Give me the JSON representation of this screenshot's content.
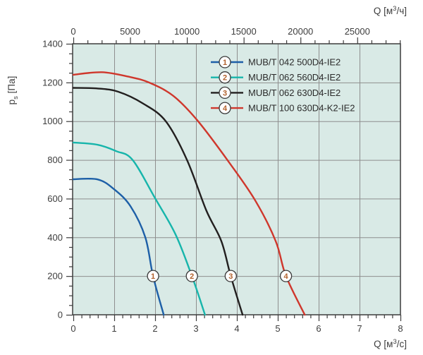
{
  "chart_data": {
    "type": "line",
    "title": "",
    "plot_bg_color": "#d9eae6",
    "grid_color": "#8e8e8e",
    "axis_color": "#3d3d3d",
    "text_color": "#3d3d3d",
    "marker_number_color": "#b2622d",
    "grid": true,
    "legend_position": "top-right-inside",
    "x_axis_bottom": {
      "label": {
        "pre": "Q [м",
        "sup": "3",
        "post": "/с]"
      },
      "min": 0,
      "max": 8,
      "major_tick_step": 1,
      "minor_tick_step": 0.2,
      "tick_labels": [
        "0",
        "1",
        "2",
        "3",
        "4",
        "5",
        "6",
        "7",
        "8"
      ]
    },
    "x_axis_top": {
      "label": {
        "pre": "Q [м",
        "sup": "3",
        "post": "/ч]"
      },
      "unit_per_bottom_unit": 3600,
      "min": 0,
      "max": 28800,
      "major_tick_step": 5000,
      "minor_tick_step": 1250,
      "tick_labels": [
        "0",
        "5000",
        "10000",
        "15000",
        "20000",
        "25000"
      ]
    },
    "y_axis": {
      "label": {
        "pre": "p",
        "sub": "s",
        "post": " [Па]"
      },
      "min": 0,
      "max": 1400,
      "major_tick_step": 200,
      "minor_tick_step": 50,
      "tick_labels": [
        "0",
        "200",
        "400",
        "600",
        "800",
        "1000",
        "1200",
        "1400"
      ]
    },
    "marker_pressure": 200,
    "series": [
      {
        "id": "1",
        "name": "MUB/T 042 500D4-IE2",
        "color": "#1d5fa7",
        "marker_q": 1.95,
        "points": [
          [
            0,
            700
          ],
          [
            0.6,
            699
          ],
          [
            1.0,
            648
          ],
          [
            1.4,
            560
          ],
          [
            1.76,
            400
          ],
          [
            1.95,
            200
          ],
          [
            2.21,
            0
          ]
        ]
      },
      {
        "id": "2",
        "name": "MUB/T 062 560D4-IE2",
        "color": "#17b5ab",
        "marker_q": 2.9,
        "points": [
          [
            0,
            890
          ],
          [
            0.6,
            878
          ],
          [
            1.05,
            845
          ],
          [
            1.45,
            800
          ],
          [
            2.0,
            602
          ],
          [
            2.5,
            415
          ],
          [
            2.9,
            200
          ],
          [
            3.22,
            0
          ]
        ]
      },
      {
        "id": "3",
        "name": "MUB/T 062 630D4-IE2",
        "color": "#221f1f",
        "marker_q": 3.85,
        "points": [
          [
            0,
            1172
          ],
          [
            0.6,
            1169
          ],
          [
            1.1,
            1152
          ],
          [
            1.7,
            1092
          ],
          [
            2.26,
            1000
          ],
          [
            2.78,
            800
          ],
          [
            3.25,
            540
          ],
          [
            3.62,
            380
          ],
          [
            3.85,
            200
          ],
          [
            4.14,
            0
          ]
        ]
      },
      {
        "id": "4",
        "name": "MUB/T 100 630D4-K2-IE2",
        "color": "#cf372c",
        "marker_q": 5.2,
        "points": [
          [
            0,
            1240
          ],
          [
            0.7,
            1253
          ],
          [
            1.35,
            1230
          ],
          [
            1.85,
            1200
          ],
          [
            2.45,
            1130
          ],
          [
            3.05,
            1000
          ],
          [
            3.8,
            790
          ],
          [
            4.45,
            590
          ],
          [
            4.95,
            380
          ],
          [
            5.2,
            200
          ],
          [
            5.66,
            0
          ]
        ]
      }
    ]
  }
}
